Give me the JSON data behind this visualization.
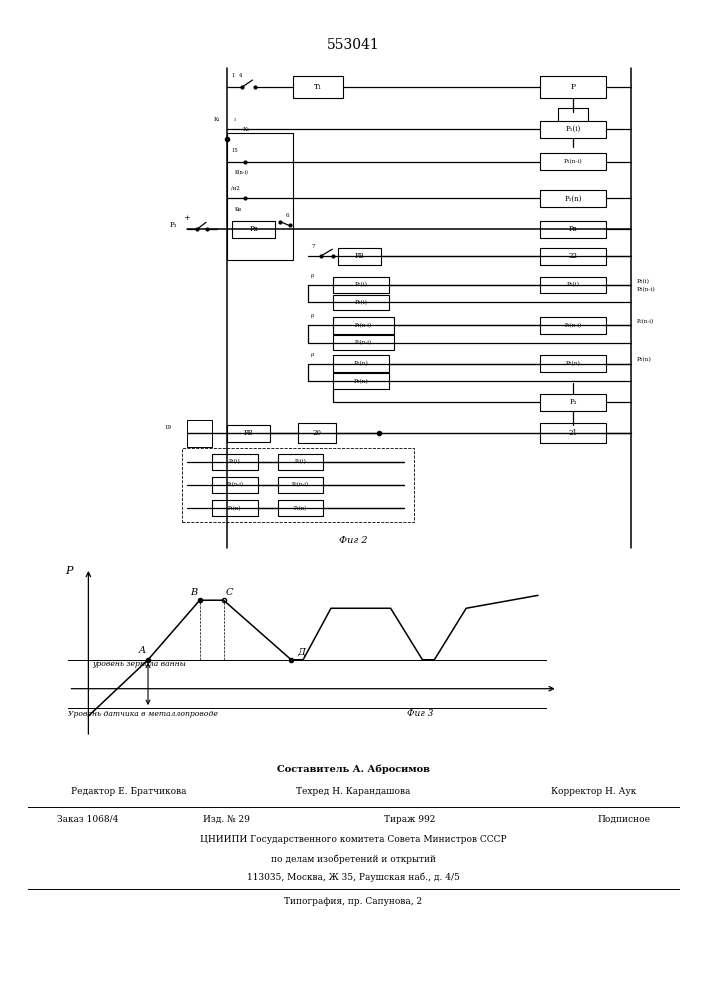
{
  "title": "553041",
  "bg": "#ffffff",
  "fig2_label": "Фиг 2",
  "fig3_label": "Фиг 3",
  "level1_label": "уровень зеркала ванны",
  "level2_label": "Уровень датчика в металлопроводе",
  "footer_s1": "Составитель А. Абросимов",
  "footer_ed": "Редактор Е. Братчикова",
  "footer_tech": "Техред Н. Карандашова",
  "footer_corr": "Корректор Н. Аук",
  "footer_order": "Заказ 1068/4",
  "footer_ed_num": "Изд. № 29",
  "footer_circ": "Тираж 992",
  "footer_sub": "Подписное",
  "footer_org1": "ЦНИИПИ Государственного комитета Совета Министров СССР",
  "footer_org2": "по делам изобретений и открытий",
  "footer_addr": "113035, Москва, Ж 35, Раушская наб., д. 4/5",
  "footer_print": "Типография, пр. Сапунова, 2"
}
